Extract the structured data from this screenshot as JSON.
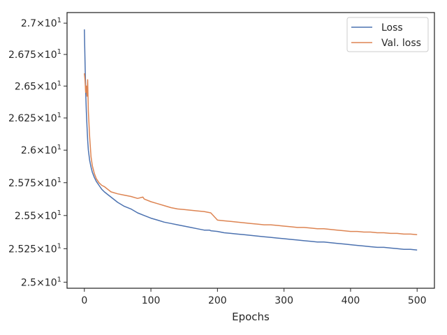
{
  "chart_data": {
    "type": "line",
    "title": "",
    "xlabel": "Epochs",
    "ylabel": "",
    "xlim": [
      -26,
      526
    ],
    "ylim": [
      24.955,
      27.085
    ],
    "y_scale": "log",
    "grid": false,
    "legend_position": "top-right",
    "x_ticks": [
      0,
      100,
      200,
      300,
      400,
      500
    ],
    "x_tick_labels": [
      "0",
      "100",
      "200",
      "300",
      "400",
      "500"
    ],
    "y_ticks": [
      25.0,
      25.25,
      25.5,
      25.75,
      26.0,
      26.25,
      26.5,
      26.75,
      27.0
    ],
    "y_tick_labels": [
      {
        "mantissa": "2.5",
        "base": "10",
        "exp": "1"
      },
      {
        "mantissa": "2.525",
        "base": "10",
        "exp": "1"
      },
      {
        "mantissa": "2.55",
        "base": "10",
        "exp": "1"
      },
      {
        "mantissa": "2.575",
        "base": "10",
        "exp": "1"
      },
      {
        "mantissa": "2.6",
        "base": "10",
        "exp": "1"
      },
      {
        "mantissa": "2.625",
        "base": "10",
        "exp": "1"
      },
      {
        "mantissa": "2.65",
        "base": "10",
        "exp": "1"
      },
      {
        "mantissa": "2.675",
        "base": "10",
        "exp": "1"
      },
      {
        "mantissa": "2.7",
        "base": "10",
        "exp": "1"
      }
    ],
    "series": [
      {
        "name": "Loss",
        "color": "#4c72b0",
        "x": [
          0,
          1,
          2,
          3,
          4,
          5,
          6,
          8,
          10,
          12,
          15,
          18,
          22,
          26,
          30,
          35,
          40,
          50,
          60,
          70,
          80,
          90,
          100,
          110,
          120,
          130,
          140,
          150,
          160,
          170,
          180,
          188,
          190,
          200,
          210,
          220,
          230,
          240,
          250,
          260,
          270,
          280,
          290,
          300,
          310,
          320,
          330,
          340,
          350,
          360,
          370,
          380,
          390,
          400,
          410,
          420,
          430,
          440,
          450,
          460,
          470,
          480,
          490,
          500
        ],
        "y": [
          26.95,
          26.7,
          26.45,
          26.3,
          26.18,
          26.08,
          26.0,
          25.92,
          25.87,
          25.83,
          25.79,
          25.76,
          25.73,
          25.7,
          25.68,
          25.66,
          25.64,
          25.6,
          25.57,
          25.55,
          25.52,
          25.5,
          25.48,
          25.465,
          25.45,
          25.44,
          25.43,
          25.42,
          25.41,
          25.4,
          25.39,
          25.39,
          25.385,
          25.38,
          25.37,
          25.365,
          25.36,
          25.355,
          25.35,
          25.345,
          25.34,
          25.335,
          25.33,
          25.325,
          25.32,
          25.315,
          25.31,
          25.305,
          25.3,
          25.3,
          25.295,
          25.29,
          25.285,
          25.28,
          25.275,
          25.27,
          25.265,
          25.26,
          25.26,
          25.255,
          25.25,
          25.245,
          25.245,
          25.24
        ]
      },
      {
        "name": "Val. loss",
        "color": "#dd8452",
        "x": [
          0,
          1,
          2,
          3,
          4,
          5,
          6,
          8,
          10,
          12,
          15,
          18,
          22,
          26,
          30,
          35,
          40,
          50,
          60,
          70,
          80,
          88,
          90,
          100,
          110,
          120,
          130,
          140,
          150,
          160,
          170,
          180,
          190,
          200,
          210,
          220,
          230,
          240,
          250,
          260,
          270,
          280,
          290,
          300,
          310,
          320,
          330,
          340,
          350,
          360,
          370,
          380,
          390,
          400,
          410,
          420,
          430,
          440,
          450,
          460,
          470,
          480,
          490,
          500
        ],
        "y": [
          26.6,
          26.55,
          26.45,
          26.5,
          26.42,
          26.55,
          26.3,
          26.1,
          25.95,
          25.88,
          25.82,
          25.78,
          25.75,
          25.73,
          25.72,
          25.7,
          25.68,
          25.665,
          25.655,
          25.645,
          25.63,
          25.64,
          25.625,
          25.605,
          25.59,
          25.575,
          25.56,
          25.55,
          25.545,
          25.54,
          25.535,
          25.53,
          25.52,
          25.465,
          25.46,
          25.455,
          25.45,
          25.445,
          25.44,
          25.435,
          25.43,
          25.43,
          25.425,
          25.42,
          25.415,
          25.41,
          25.41,
          25.405,
          25.4,
          25.4,
          25.395,
          25.39,
          25.385,
          25.38,
          25.38,
          25.375,
          25.375,
          25.37,
          25.37,
          25.365,
          25.365,
          25.36,
          25.36,
          25.355
        ]
      }
    ]
  }
}
